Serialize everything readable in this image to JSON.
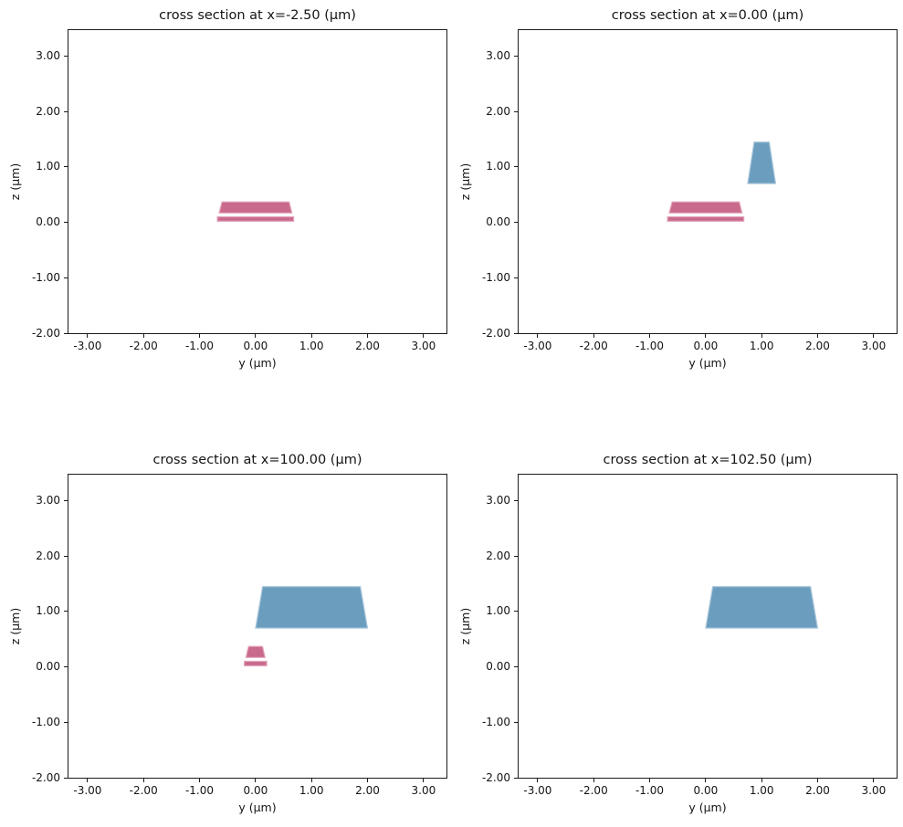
{
  "figure": {
    "background": "#ffffff",
    "spine_color": "#1c1c1c"
  },
  "chart_data": {
    "type": "polygon",
    "description": "2x2 grid of waveguide cross-section plots",
    "xlabel": "y (μm)",
    "ylabel": "z (μm)",
    "xlim": [
      -3.34,
      3.41
    ],
    "ylim": [
      -2.0,
      3.47
    ],
    "grid": false,
    "legend": false,
    "xticks": {
      "values": [
        -3,
        -2,
        -1,
        0,
        1,
        2,
        3
      ],
      "labels": [
        "-3.00",
        "-2.00",
        "-1.00",
        "0.00",
        "1.00",
        "2.00",
        "3.00"
      ]
    },
    "yticks": {
      "values": [
        3,
        2,
        1,
        0,
        -1,
        -2
      ],
      "labels": [
        "3.00",
        "2.00",
        "1.00",
        "0.00",
        "-1.00",
        "-2.00"
      ]
    },
    "layers": {
      "pink": {
        "fill": "#c9698c",
        "stroke": "#e2a6bc"
      },
      "blue": {
        "fill": "#6b9dbe",
        "stroke": "#aecadc"
      }
    },
    "subplots": [
      {
        "title": "cross section at x=-2.50 (μm)",
        "x_um": -2.5,
        "polygons": [
          {
            "name": "pink-ridge-wide",
            "layer": "pink",
            "points": [
              [
                -0.65,
                0.17
              ],
              [
                0.65,
                0.17
              ],
              [
                0.6,
                0.37
              ],
              [
                -0.6,
                0.37
              ]
            ]
          },
          {
            "name": "pink-slab-wide",
            "layer": "pink",
            "points": [
              [
                -0.68,
                0.02
              ],
              [
                0.68,
                0.02
              ],
              [
                0.68,
                0.1
              ],
              [
                -0.68,
                0.1
              ]
            ]
          }
        ]
      },
      {
        "title": "cross section at x=0.00 (μm)",
        "x_um": 0.0,
        "polygons": [
          {
            "name": "pink-ridge-wide",
            "layer": "pink",
            "points": [
              [
                -0.65,
                0.17
              ],
              [
                0.65,
                0.17
              ],
              [
                0.6,
                0.37
              ],
              [
                -0.6,
                0.37
              ]
            ]
          },
          {
            "name": "pink-slab-wide",
            "layer": "pink",
            "points": [
              [
                -0.68,
                0.02
              ],
              [
                0.68,
                0.02
              ],
              [
                0.68,
                0.1
              ],
              [
                -0.68,
                0.1
              ]
            ]
          },
          {
            "name": "blue-waveguide-narrow",
            "layer": "blue",
            "points": [
              [
                0.75,
                0.7
              ],
              [
                1.25,
                0.7
              ],
              [
                1.135,
                1.45
              ],
              [
                0.865,
                1.45
              ]
            ]
          }
        ]
      },
      {
        "title": "cross section at x=100.00 (μm)",
        "x_um": 100.0,
        "polygons": [
          {
            "name": "blue-waveguide-wide",
            "layer": "blue",
            "points": [
              [
                0.0,
                0.7
              ],
              [
                2.0,
                0.7
              ],
              [
                1.873,
                1.45
              ],
              [
                0.127,
                1.45
              ]
            ]
          },
          {
            "name": "pink-ridge-tip",
            "layer": "pink",
            "points": [
              [
                -0.17,
                0.17
              ],
              [
                0.17,
                0.17
              ],
              [
                0.125,
                0.37
              ],
              [
                -0.125,
                0.37
              ]
            ]
          },
          {
            "name": "pink-slab-tip",
            "layer": "pink",
            "points": [
              [
                -0.2,
                0.02
              ],
              [
                0.2,
                0.02
              ],
              [
                0.2,
                0.1
              ],
              [
                -0.2,
                0.1
              ]
            ]
          }
        ]
      },
      {
        "title": "cross section at x=102.50 (μm)",
        "x_um": 102.5,
        "polygons": [
          {
            "name": "blue-waveguide-wide",
            "layer": "blue",
            "points": [
              [
                0.0,
                0.7
              ],
              [
                2.0,
                0.7
              ],
              [
                1.873,
                1.45
              ],
              [
                0.127,
                1.45
              ]
            ]
          }
        ]
      }
    ]
  }
}
